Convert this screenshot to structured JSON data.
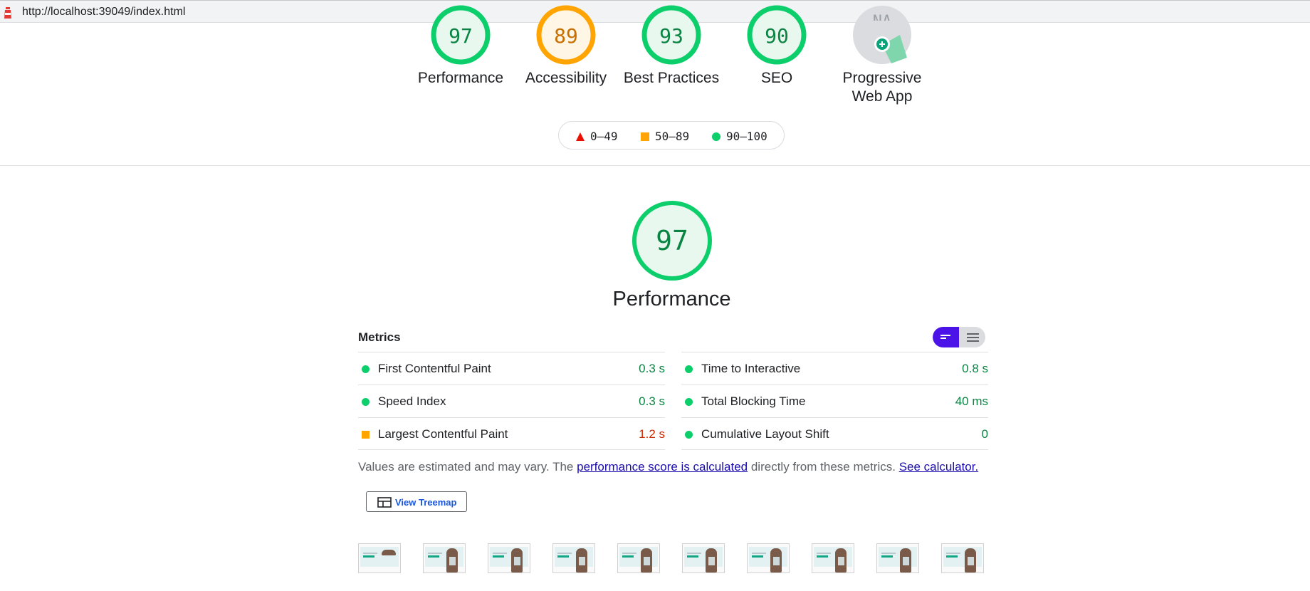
{
  "browser": {
    "url": "http://localhost:39049/index.html"
  },
  "summary_gauges": [
    {
      "label": "Performance",
      "score": "97",
      "status": "pass"
    },
    {
      "label": "Accessibility",
      "score": "89",
      "status": "average"
    },
    {
      "label": "Best Practices",
      "score": "93",
      "status": "pass"
    },
    {
      "label": "SEO",
      "score": "90",
      "status": "pass"
    },
    {
      "label": "Progressive Web App",
      "label_line1": "Progressive",
      "label_line2": "Web App",
      "score": "NA",
      "status": "pwa"
    }
  ],
  "legend": {
    "fail": "0–49",
    "average": "50–89",
    "pass": "90–100"
  },
  "category": {
    "score": "97",
    "title": "Performance",
    "metrics_title": "Metrics",
    "metrics_left": [
      {
        "name": "First Contentful Paint",
        "value": "0.3 s",
        "status": "pass"
      },
      {
        "name": "Speed Index",
        "value": "0.3 s",
        "status": "pass"
      },
      {
        "name": "Largest Contentful Paint",
        "value": "1.2 s",
        "status": "average"
      }
    ],
    "metrics_right": [
      {
        "name": "Time to Interactive",
        "value": "0.8 s",
        "status": "pass"
      },
      {
        "name": "Total Blocking Time",
        "value": "40 ms",
        "status": "pass"
      },
      {
        "name": "Cumulative Layout Shift",
        "value": "0",
        "status": "pass"
      }
    ],
    "note_prefix": "Values are estimated and may vary. The ",
    "note_link1": "performance score is calculated",
    "note_middle": " directly from these metrics.",
    "note_link2": "See calculator.",
    "treemap_button": "View Treemap",
    "filmstrip_count": 10
  },
  "colors": {
    "pass": "#0cce6b",
    "pass_text": "#0a8443",
    "average": "#ffa400",
    "average_text": "#c33300",
    "fail": "#ff4e42",
    "toggle_active": "#4c13e8"
  }
}
